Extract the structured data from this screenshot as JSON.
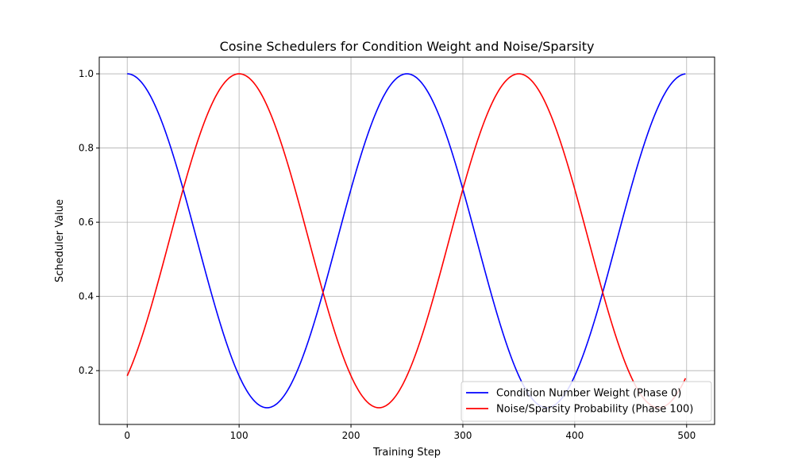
{
  "chart_data": {
    "type": "line",
    "title": "Cosine Schedulers for Condition Weight and Noise/Sparsity",
    "xlabel": "Training Step",
    "ylabel": "Scheduler Value",
    "xlim": [
      -25,
      525
    ],
    "ylim": [
      0.055,
      1.045
    ],
    "x_ticks": [
      0,
      100,
      200,
      300,
      400,
      500
    ],
    "y_ticks": [
      0.2,
      0.4,
      0.6,
      0.8,
      1.0
    ],
    "grid": true,
    "legend_position": "bottom-right",
    "x_start": 0,
    "x_end": 499,
    "series": [
      {
        "name": "Condition Number Weight (Phase 0)",
        "color": "#0000ff",
        "function": "cosine",
        "min": 0.1,
        "max": 1.0,
        "period": 250,
        "phase": 0
      },
      {
        "name": "Noise/Sparsity Probability (Phase 100)",
        "color": "#ff0000",
        "function": "cosine",
        "min": 0.1,
        "max": 1.0,
        "period": 250,
        "phase": 100
      }
    ]
  }
}
